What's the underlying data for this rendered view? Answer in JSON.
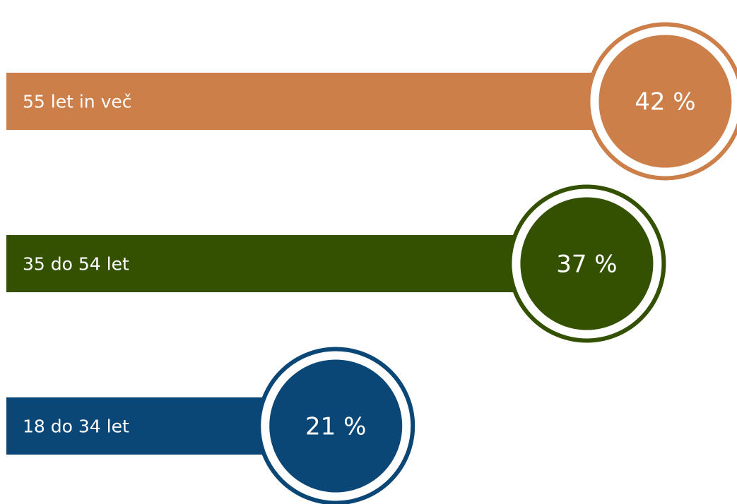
{
  "chart_data": {
    "type": "bar",
    "orientation": "horizontal",
    "categories": [
      "55 let in več",
      "35 do 54 let",
      "18 do 34 let"
    ],
    "values": [
      42,
      37,
      21
    ],
    "value_labels": [
      "42 %",
      "37 %",
      "21 %"
    ],
    "unit": "%",
    "colors": [
      "#CD7F4A",
      "#335100",
      "#0A4777"
    ],
    "title": "",
    "xlabel": "",
    "ylabel": "",
    "grid": false,
    "legend": "none"
  }
}
